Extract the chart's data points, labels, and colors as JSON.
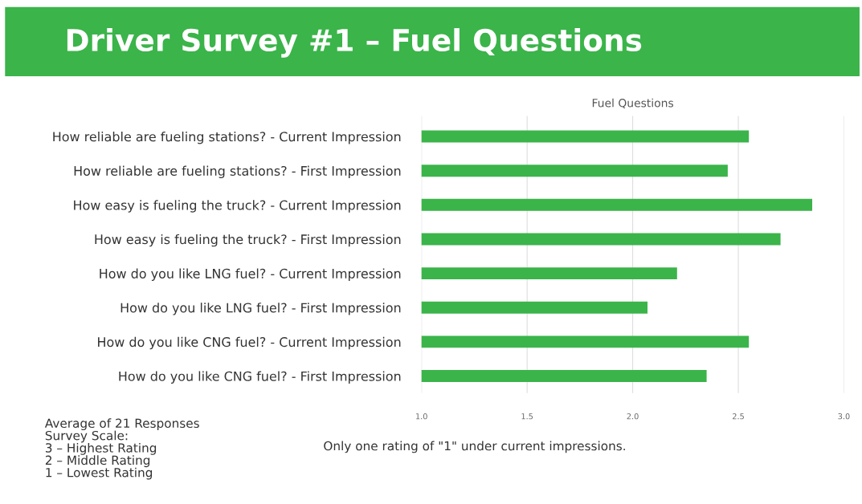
{
  "chart_data": {
    "type": "bar",
    "orientation": "horizontal",
    "title": "Driver Survey #1 – Fuel Questions",
    "subtitle": "Fuel Questions",
    "categories": [
      "How reliable are fueling stations? - Current Impression",
      "How reliable are fueling stations? - First Impression",
      "How easy is fueling the truck? - Current Impression",
      "How easy is fueling the truck? - First Impression",
      "How do you like LNG fuel? - Current Impression",
      "How do you like LNG fuel? - First Impression",
      "How do you like CNG fuel? - Current Impression",
      "How do you like CNG fuel? - First Impression"
    ],
    "values": [
      2.55,
      2.45,
      2.85,
      2.7,
      2.21,
      2.07,
      2.55,
      2.35
    ],
    "color": "#3bb44a",
    "xlim": [
      1.0,
      3.0
    ],
    "xticks": [
      {
        "value": 1.0,
        "label": "1.0"
      },
      {
        "value": 1.5,
        "label": "1.5"
      },
      {
        "value": 2.0,
        "label": "2.0"
      },
      {
        "value": 2.5,
        "label": "2.5"
      },
      {
        "value": 3.0,
        "label": "3.0"
      }
    ],
    "grid": "x",
    "annotations": [
      "Average of 21 Responses\nSurvey Scale:\n3 – Highest Rating\n2 – Middle Rating\n1 – Lowest Rating",
      "Only one rating of \"1\" under current impressions."
    ]
  }
}
